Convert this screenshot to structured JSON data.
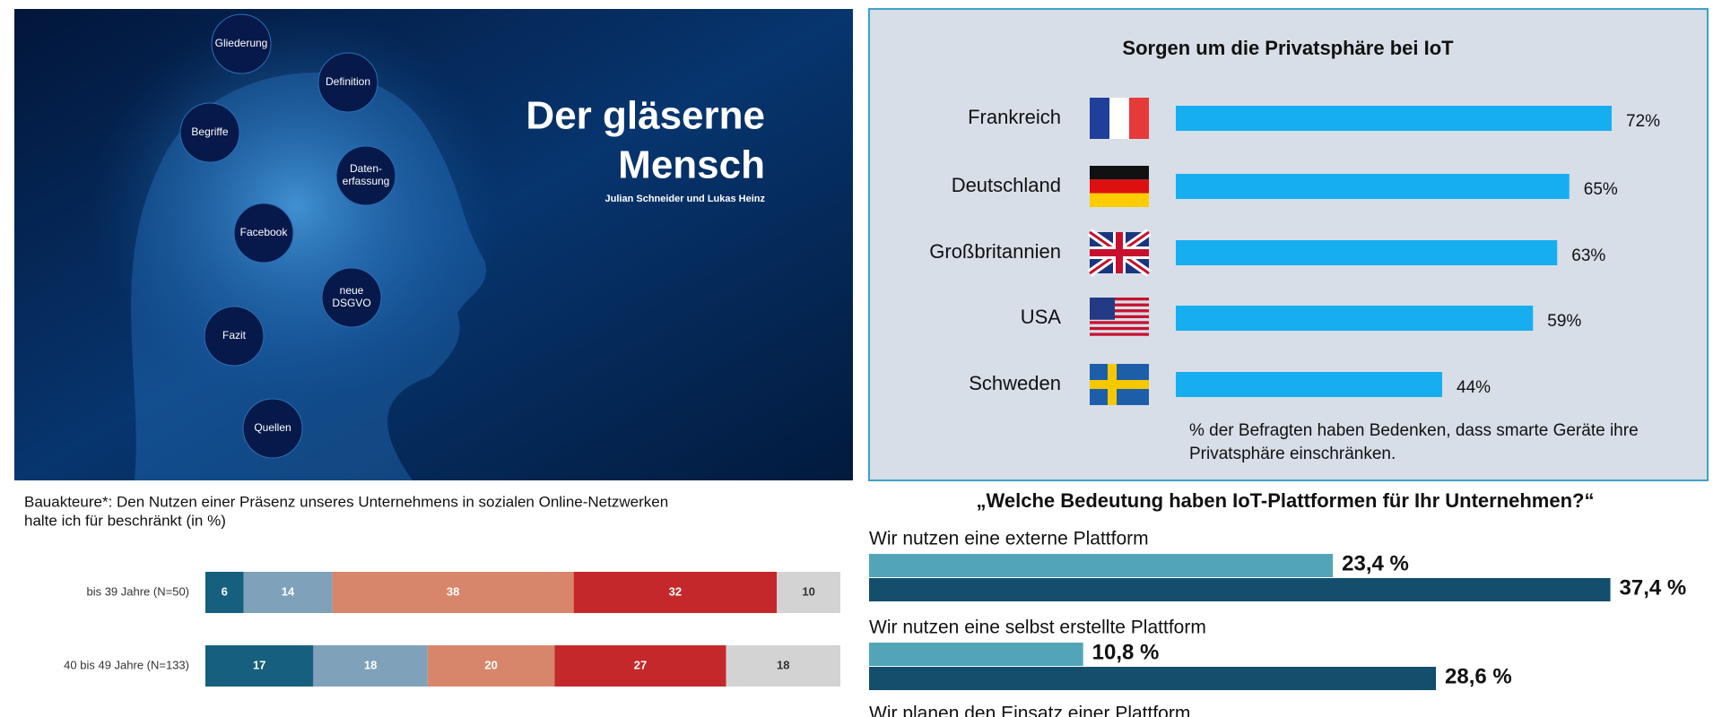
{
  "slide": {
    "title_lines": [
      "Der gläserne",
      "Mensch"
    ],
    "authors": "Julian Schneider und Lukas Heinz",
    "nodes": [
      {
        "lines": [
          "Gliederung"
        ]
      },
      {
        "lines": [
          "Definition"
        ]
      },
      {
        "lines": [
          "Begriffe"
        ]
      },
      {
        "lines": [
          "Daten-",
          "erfassung"
        ]
      },
      {
        "lines": [
          "Facebook"
        ]
      },
      {
        "lines": [
          "neue",
          "DSGVO"
        ]
      },
      {
        "lines": [
          "Fazit"
        ]
      },
      {
        "lines": [
          "Quellen"
        ]
      }
    ]
  },
  "chart_data": [
    {
      "type": "hbar",
      "title": "Sorgen um die Privatsphäre bei IoT",
      "categories": [
        "Frankreich",
        "Deutschland",
        "Großbritannien",
        "USA",
        "Schweden"
      ],
      "values": [
        72,
        65,
        63,
        59,
        44
      ],
      "value_labels": [
        "72%",
        "65%",
        "63%",
        "59%",
        "44%"
      ],
      "color": "#17aef0",
      "note_lines": [
        "% der Befragten haben Bedenken, dass smarte Geräte ihre",
        "Privatsphäre einschränken."
      ]
    },
    {
      "type": "stacked_hbar",
      "title_lines": [
        "Bauakteure*: Den Nutzen  einer Präsenz unseres Unternehmens  in sozialen Online-Netzwerken",
        "halte ich für beschränkt  (in %)"
      ],
      "categories": [
        "bis 39 Jahre (N=50)",
        "40 bis 49 Jahre (N=133)"
      ],
      "series": [
        {
          "color": "#175f7e",
          "values": [
            6,
            17
          ]
        },
        {
          "color": "#7fa2ba",
          "values": [
            14,
            18
          ]
        },
        {
          "color": "#d8866b",
          "values": [
            38,
            20
          ]
        },
        {
          "color": "#c5282a",
          "values": [
            32,
            27
          ]
        },
        {
          "color": "#d3d3d3",
          "values": [
            10,
            18
          ]
        }
      ]
    },
    {
      "type": "grouped_hbar",
      "title": "„Welche Bedeutung haben IoT-Plattformen für Ihr Unternehmen?“",
      "categories": [
        "Wir nutzen eine externe Plattform",
        "Wir nutzen eine selbst erstellte Plattform",
        "Wir planen den Einsatz einer Plattform"
      ],
      "series": [
        {
          "color": "#52a5b9",
          "values": [
            23.4,
            10.8,
            null
          ],
          "value_labels": [
            "23,4 %",
            "10,8 %",
            null
          ]
        },
        {
          "color": "#134e6d",
          "values": [
            37.4,
            28.6,
            null
          ],
          "value_labels": [
            "37,4 %",
            "28,6 %",
            null
          ]
        }
      ]
    }
  ]
}
